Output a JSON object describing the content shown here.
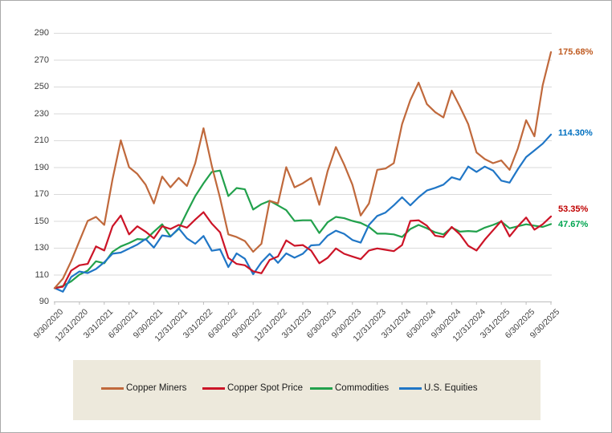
{
  "chart_data": {
    "type": "line",
    "title": "",
    "xlabel": "",
    "ylabel": "",
    "ylim": [
      90,
      290
    ],
    "y_ticks": [
      90,
      110,
      130,
      150,
      170,
      190,
      210,
      230,
      250,
      270,
      290
    ],
    "grid": true,
    "legend_position": "bottom",
    "x_label_rotation": -45,
    "months": 61,
    "x_quarter_labels": [
      "9/30/2020",
      "12/31/2020",
      "3/31/2021",
      "6/30/2021",
      "9/30/2021",
      "12/31/2021",
      "3/31/2022",
      "6/30/2022",
      "9/30/2022",
      "12/31/2022",
      "3/31/2023",
      "6/30/2023",
      "9/30/2023",
      "12/31/2023",
      "3/31/2024",
      "6/30/2024",
      "9/30/2024",
      "12/31/2024",
      "3/31/2025",
      "6/30/2025",
      "9/30/2025"
    ],
    "colors": {
      "gridline": "#dadada",
      "axis": "#bdbdbd",
      "tick_text": "#3f3f3f",
      "legend_background": "#ede9dc"
    },
    "series": [
      {
        "name": "Copper Miners",
        "color": "#c0693c",
        "end_label": "175.68%",
        "end_label_color": "#bf5b21",
        "end_label_dy": 0,
        "zorder": 4,
        "values": [
          100,
          107,
          120,
          135,
          150,
          153,
          147,
          181,
          210,
          190,
          185,
          177,
          163,
          183,
          175,
          182,
          176,
          193,
          219,
          191,
          167,
          140,
          138,
          135,
          127,
          133,
          165,
          163,
          190,
          175,
          178,
          182,
          162,
          187,
          205,
          192,
          177,
          154,
          163,
          188,
          189,
          193,
          222,
          240,
          253,
          237,
          231,
          227,
          247,
          235,
          222,
          201,
          196,
          193,
          195,
          188,
          204,
          225,
          213,
          251,
          275.68
        ]
      },
      {
        "name": "Copper Spot Price",
        "color": "#cc1427",
        "end_label": "53.35%",
        "end_label_color": "#c00000",
        "end_label_dy": -9,
        "zorder": 3,
        "values": [
          100,
          101,
          113,
          117,
          118,
          131,
          128,
          146,
          154,
          140,
          146,
          142,
          137,
          146,
          144,
          147,
          145,
          151,
          156.5,
          148,
          141.5,
          122.5,
          118,
          117,
          112.5,
          111,
          121,
          123.5,
          135.5,
          131.5,
          132,
          128,
          118.5,
          122.5,
          129.5,
          125.5,
          123.5,
          121.5,
          128,
          129.5,
          128.5,
          127.5,
          132,
          150,
          150.5,
          146.5,
          139,
          138,
          145.5,
          140,
          131.5,
          128,
          136,
          143,
          150,
          138.5,
          146,
          152.5,
          143.5,
          147.5,
          153.35
        ]
      },
      {
        "name": "Commodities",
        "color": "#22a14c",
        "end_label": "47.67%",
        "end_label_color": "#00a550",
        "end_label_dy": 1,
        "zorder": 1,
        "values": [
          100,
          101.5,
          105,
          110,
          113,
          120,
          118.5,
          127,
          131,
          133.5,
          136.5,
          136,
          142,
          147.5,
          138.5,
          144,
          156.5,
          168.5,
          178,
          186.5,
          187.5,
          168.5,
          174.5,
          173.5,
          158.5,
          162.5,
          165,
          161.5,
          158,
          150,
          150.5,
          150.5,
          141,
          149,
          153,
          152,
          150,
          148.5,
          145.5,
          140.5,
          140.5,
          140,
          138,
          144,
          147,
          144.5,
          141.5,
          140,
          145,
          142,
          142.5,
          142,
          145,
          147,
          149.5,
          144.5,
          146,
          147.5,
          146.5,
          145.5,
          147.67
        ]
      },
      {
        "name": "U.S. Equities",
        "color": "#2076c6",
        "end_label": "114.30%",
        "end_label_color": "#0070c0",
        "end_label_dy": -2,
        "zorder": 2,
        "values": [
          100,
          97.3,
          108.2,
          112.3,
          111.2,
          114.2,
          119.2,
          125.6,
          126.4,
          129.4,
          132.4,
          136.5,
          130.1,
          139.2,
          138.3,
          144.5,
          137,
          133,
          138.8,
          127.8,
          128.8,
          115.6,
          125.8,
          121.8,
          110.3,
          119.2,
          125.5,
          118.8,
          125.8,
          122.6,
          125.5,
          131.8,
          132.2,
          139,
          142.7,
          140.4,
          135.8,
          133.8,
          147,
          153.7,
          156.2,
          161.6,
          167.6,
          161.6,
          167.6,
          172.6,
          174.6,
          177,
          182.5,
          180.6,
          190.5,
          186.5,
          190.5,
          187.5,
          180,
          178.5,
          188.5,
          197.5,
          202.5,
          207.5,
          214.3
        ]
      }
    ]
  },
  "legend": {
    "items": [
      "Copper Miners",
      "Copper Spot Price",
      "Commodities",
      "U.S. Equities"
    ]
  }
}
